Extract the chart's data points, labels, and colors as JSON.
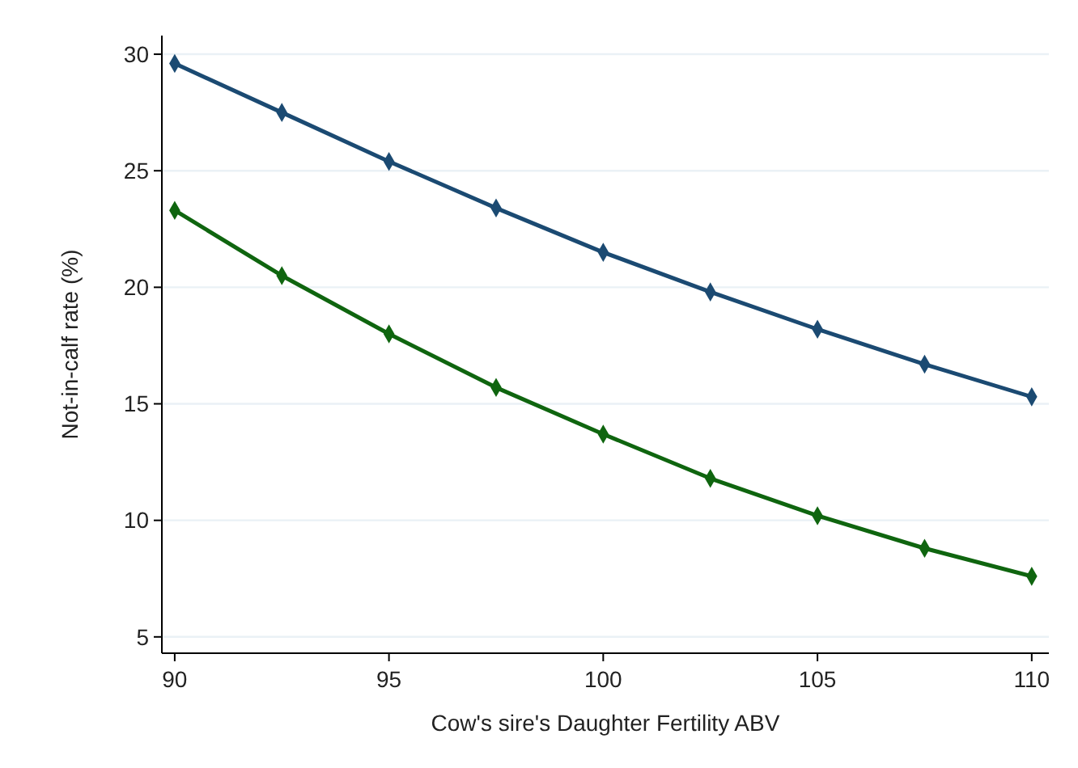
{
  "chart_data": {
    "type": "line",
    "xlabel": "Cow's sire's Daughter Fertility ABV",
    "ylabel": "Not-in-calf rate (%)",
    "x": [
      90,
      92.5,
      95,
      97.5,
      100,
      102.5,
      105,
      107.5,
      110
    ],
    "series": [
      {
        "color": "#1b4a72",
        "values": [
          29.6,
          27.5,
          25.4,
          23.4,
          21.5,
          19.8,
          18.2,
          16.7,
          15.3
        ]
      },
      {
        "color": "#0f650f",
        "values": [
          23.3,
          20.5,
          18.0,
          15.7,
          13.7,
          11.8,
          10.2,
          8.8,
          7.6
        ]
      }
    ],
    "xlim": [
      89.7,
      110.4
    ],
    "xticks": [
      90,
      95,
      100,
      105,
      110
    ],
    "ylim": [
      4.3,
      30.8
    ],
    "yticks": [
      5,
      10,
      15,
      20,
      25,
      30
    ],
    "grid": "y",
    "marker": "diamond",
    "line_style": "solid"
  }
}
